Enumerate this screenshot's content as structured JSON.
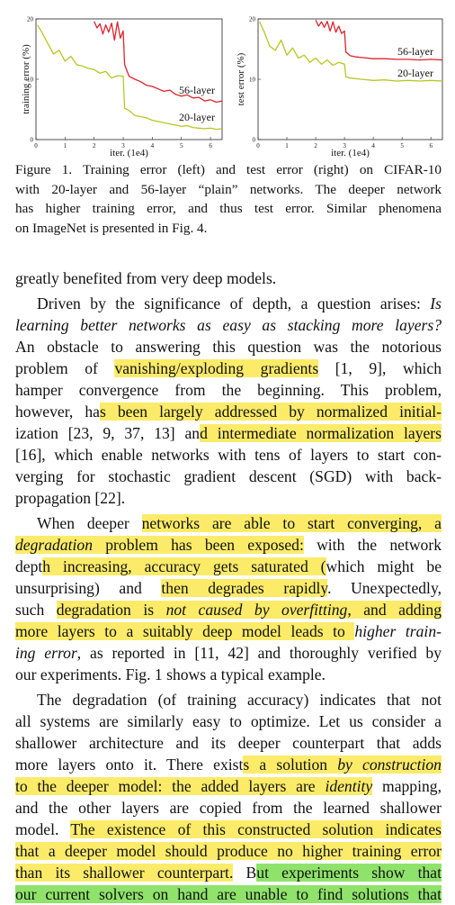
{
  "figure": {
    "charts": [
      {
        "ylabel": "training error (%)",
        "xlabel": "iter. (1e4)",
        "y_ticks": [
          "0",
          "10",
          "20"
        ],
        "x_ticks": [
          "0",
          "1",
          "2",
          "3",
          "4",
          "5",
          "6"
        ],
        "series_labels": [
          "56-layer",
          "20-layer"
        ]
      },
      {
        "ylabel": "test error (%)",
        "xlabel": "iter. (1e4)",
        "y_ticks": [
          "0",
          "10",
          "20"
        ],
        "x_ticks": [
          "0",
          "1",
          "2",
          "3",
          "4",
          "5",
          "6"
        ],
        "series_labels": [
          "56-layer",
          "20-layer"
        ]
      }
    ],
    "caption_lines": [
      "Figure 1. Training error (left) and test error (right) on CIFAR-10",
      "with 20-layer and 56-layer “plain” networks. The deeper network",
      "has higher training error, and thus test error. Similar phenomena",
      "on ImageNet is presented in Fig. 4."
    ]
  },
  "chart_data": [
    {
      "type": "line",
      "ylabel": "training error (%)",
      "xlabel": "iter. (1e4)",
      "xlim": [
        0,
        6.4
      ],
      "ylim": [
        0,
        20
      ],
      "series": [
        {
          "name": "56-layer",
          "color": "#e0222c",
          "x": [
            2.0,
            2.1,
            2.2,
            2.3,
            2.4,
            2.5,
            2.6,
            2.7,
            2.8,
            2.9,
            3.0,
            3.05,
            3.2,
            3.4,
            3.6,
            3.8,
            4.0,
            4.2,
            4.4,
            4.6,
            4.8,
            5.0,
            5.2,
            5.4,
            5.6,
            5.8,
            6.0,
            6.2,
            6.4
          ],
          "y": [
            19.6,
            18.5,
            19.2,
            17.5,
            19.0,
            17.8,
            19.3,
            16.5,
            19.5,
            16.8,
            18.0,
            12.4,
            10.5,
            10.0,
            9.6,
            9.0,
            8.8,
            8.4,
            8.0,
            8.2,
            7.5,
            7.2,
            7.4,
            6.9,
            7.0,
            6.4,
            6.6,
            6.2,
            6.4
          ]
        },
        {
          "name": "20-layer",
          "color": "#b6c722",
          "x": [
            0.05,
            0.2,
            0.4,
            0.6,
            0.8,
            1.0,
            1.2,
            1.4,
            1.6,
            1.8,
            2.0,
            2.2,
            2.4,
            2.6,
            2.8,
            3.0,
            3.05,
            3.2,
            3.4,
            3.6,
            3.8,
            4.0,
            4.2,
            4.4,
            4.6,
            4.8,
            5.0,
            5.2,
            5.4,
            5.6,
            5.8,
            6.0,
            6.2,
            6.4
          ],
          "y": [
            19.0,
            17.8,
            16.0,
            14.2,
            14.8,
            13.0,
            13.8,
            12.4,
            12.2,
            11.8,
            11.6,
            11.0,
            11.3,
            10.2,
            10.6,
            10.5,
            5.2,
            4.8,
            4.0,
            3.8,
            3.6,
            3.2,
            3.0,
            2.8,
            2.6,
            2.4,
            2.2,
            2.3,
            2.0,
            1.9,
            1.8,
            1.9,
            1.7,
            1.8
          ]
        }
      ]
    },
    {
      "type": "line",
      "ylabel": "test error (%)",
      "xlabel": "iter. (1e4)",
      "xlim": [
        0,
        6.4
      ],
      "ylim": [
        0,
        20
      ],
      "series": [
        {
          "name": "56-layer",
          "color": "#e0222c",
          "x": [
            2.0,
            2.1,
            2.2,
            2.3,
            2.4,
            2.5,
            2.6,
            2.7,
            2.8,
            2.9,
            3.0,
            3.05,
            3.2,
            3.4,
            3.6,
            3.8,
            4.0,
            4.4,
            4.8,
            5.2,
            5.6,
            6.0,
            6.4
          ],
          "y": [
            19.8,
            18.8,
            19.5,
            18.6,
            19.6,
            18.0,
            19.5,
            17.8,
            18.8,
            17.6,
            18.0,
            14.5,
            13.9,
            13.7,
            13.6,
            13.5,
            13.4,
            13.4,
            13.3,
            13.3,
            13.2,
            13.3,
            13.2
          ]
        },
        {
          "name": "20-layer",
          "color": "#b6c722",
          "x": [
            0.05,
            0.2,
            0.4,
            0.6,
            0.8,
            1.0,
            1.2,
            1.4,
            1.6,
            1.8,
            2.0,
            2.2,
            2.4,
            2.6,
            2.8,
            3.0,
            3.05,
            3.2,
            3.6,
            4.0,
            4.4,
            4.8,
            5.2,
            5.6,
            6.0,
            6.4
          ],
          "y": [
            19.5,
            18.0,
            15.5,
            14.8,
            16.5,
            14.0,
            15.2,
            13.5,
            14.0,
            12.8,
            13.5,
            12.5,
            13.2,
            12.3,
            12.8,
            12.5,
            10.4,
            10.2,
            10.0,
            9.8,
            9.9,
            9.7,
            9.8,
            9.7,
            9.8,
            9.7
          ]
        }
      ]
    }
  ],
  "body_lines": [
    {
      "indent": false,
      "justify": false,
      "parts": [
        {
          "t": "greatly benefited from very deep models."
        }
      ]
    },
    {
      "gap": true
    },
    {
      "indent": true,
      "justify": true,
      "parts": [
        {
          "t": "Driven by the significance of depth, a question arises: "
        },
        {
          "t": "Is",
          "em": true
        }
      ]
    },
    {
      "indent": false,
      "justify": true,
      "parts": [
        {
          "t": "learning better networks as easy as stacking more layers?",
          "em": true
        }
      ]
    },
    {
      "indent": false,
      "justify": true,
      "parts": [
        {
          "t": "An obstacle to answering this question was the notorious"
        }
      ]
    },
    {
      "indent": false,
      "justify": true,
      "parts": [
        {
          "t": "problem of "
        },
        {
          "t": "vanishing/exploding gradients",
          "hl": "y"
        },
        {
          "t": " [1, 9], which"
        }
      ]
    },
    {
      "indent": false,
      "justify": true,
      "parts": [
        {
          "t": "hamper convergence from the beginning.  This problem,"
        }
      ]
    },
    {
      "indent": false,
      "justify": true,
      "parts": [
        {
          "t": "however, ha"
        },
        {
          "t": "s been largely addressed by normalized initial-",
          "hl": "y"
        }
      ]
    },
    {
      "indent": false,
      "justify": true,
      "parts": [
        {
          "t": "ization [23, 9, 37, 13] an"
        },
        {
          "t": "d intermediate normalization layers",
          "hl": "y"
        }
      ]
    },
    {
      "indent": false,
      "justify": true,
      "parts": [
        {
          "t": "[16], which enable networks with tens of layers to start con-"
        }
      ]
    },
    {
      "indent": false,
      "justify": true,
      "parts": [
        {
          "t": "verging for stochastic gradient descent (SGD) with back-"
        }
      ]
    },
    {
      "indent": false,
      "justify": false,
      "parts": [
        {
          "t": "propagation [22]."
        }
      ]
    },
    {
      "gap": true
    },
    {
      "indent": true,
      "justify": true,
      "parts": [
        {
          "t": "When deeper "
        },
        {
          "t": "networks are able to start converging, a",
          "hl": "y"
        }
      ]
    },
    {
      "indent": false,
      "justify": true,
      "parts": [
        {
          "t": "degradation",
          "em": true,
          "hl": "y"
        },
        {
          "t": " problem has been exposed:",
          "hl": "y"
        },
        {
          "t": " with the network"
        }
      ]
    },
    {
      "indent": false,
      "justify": true,
      "parts": [
        {
          "t": "dept"
        },
        {
          "t": "h increasing, accuracy gets saturated (",
          "hl": "y"
        },
        {
          "t": "which might be"
        }
      ]
    },
    {
      "indent": false,
      "justify": true,
      "parts": [
        {
          "t": "unsurprising) and "
        },
        {
          "t": "then degrades rapidly",
          "hl": "y"
        },
        {
          "t": ".   Unexpectedly,"
        }
      ]
    },
    {
      "indent": false,
      "justify": true,
      "parts": [
        {
          "t": "such "
        },
        {
          "t": "degradation is ",
          "hl": "y"
        },
        {
          "t": "not caused by overfitting",
          "em": true,
          "hl": "y"
        },
        {
          "t": ", and adding",
          "hl": "y"
        }
      ]
    },
    {
      "indent": false,
      "justify": true,
      "parts": [
        {
          "t": "more layers to a suitably deep model leads to ",
          "hl": "y"
        },
        {
          "t": "higher train-",
          "em": true
        }
      ]
    },
    {
      "indent": false,
      "justify": true,
      "parts": [
        {
          "t": "ing error",
          "em": true
        },
        {
          "t": ", as reported in [11, 42] and thoroughly verified by"
        }
      ]
    },
    {
      "indent": false,
      "justify": false,
      "parts": [
        {
          "t": "our experiments. Fig. 1 shows a typical example."
        }
      ]
    },
    {
      "gap": true
    },
    {
      "indent": true,
      "justify": true,
      "parts": [
        {
          "t": "The degradation (of training accuracy) indicates that not"
        }
      ]
    },
    {
      "indent": false,
      "justify": true,
      "parts": [
        {
          "t": "all systems are similarly easy to optimize. Let us consider a"
        }
      ]
    },
    {
      "indent": false,
      "justify": true,
      "parts": [
        {
          "t": "shallower architecture and its deeper counterpart that adds"
        }
      ]
    },
    {
      "indent": false,
      "justify": true,
      "parts": [
        {
          "t": "more layers onto it. There exist"
        },
        {
          "t": "s a solution ",
          "hl": "y"
        },
        {
          "t": "by construction",
          "em": true,
          "hl": "y"
        }
      ]
    },
    {
      "indent": false,
      "justify": true,
      "parts": [
        {
          "t": "to the deeper model: the added layers are ",
          "hl": "y"
        },
        {
          "t": "identity",
          "em": true,
          "hl": "y"
        },
        {
          "t": " mapping,"
        }
      ]
    },
    {
      "indent": false,
      "justify": true,
      "parts": [
        {
          "t": "and the other layers are copied from the learned shallower"
        }
      ]
    },
    {
      "indent": false,
      "justify": true,
      "parts": [
        {
          "t": "model. "
        },
        {
          "t": "The existence of this constructed solution indicates",
          "hl": "y"
        }
      ]
    },
    {
      "indent": false,
      "justify": true,
      "parts": [
        {
          "t": "that a deeper model should produce no higher training error",
          "hl": "y"
        }
      ]
    },
    {
      "indent": false,
      "justify": true,
      "parts": [
        {
          "t": "than its shallower counterpart.",
          "hl": "y"
        },
        {
          "t": " B"
        },
        {
          "t": "ut experiments show that",
          "hl": "g"
        }
      ]
    },
    {
      "indent": false,
      "justify": true,
      "parts": [
        {
          "t": "our current solvers on hand are unable to find solutions that",
          "hl": "g"
        }
      ]
    }
  ]
}
